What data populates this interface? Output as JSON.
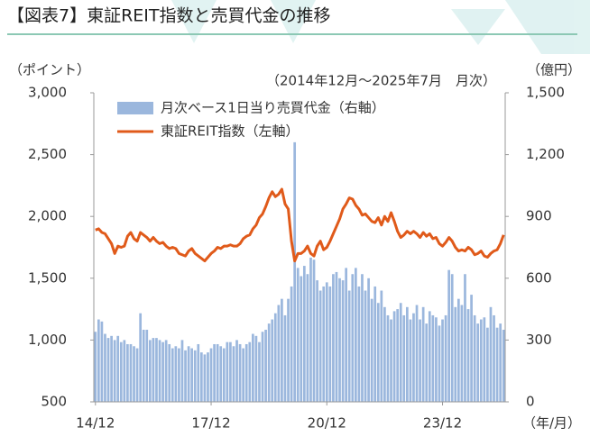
{
  "chart_data": {
    "type": "bar-line",
    "title": "【図表7】東証REIT指数と売買代金の推移",
    "subtitle": "（2014年12月～2025年7月　月次）",
    "y_label": "（ポイント）",
    "y2_label": "（億円）",
    "x_label": "（年/月）",
    "categories": [
      "14/12",
      null,
      null,
      null,
      null,
      null,
      null,
      null,
      null,
      null,
      null,
      null,
      null,
      null,
      null,
      null,
      null,
      null,
      null,
      null,
      null,
      null,
      null,
      null,
      null,
      null,
      null,
      null,
      null,
      null,
      null,
      null,
      null,
      null,
      null,
      null,
      "17/12",
      null,
      null,
      null,
      null,
      null,
      null,
      null,
      null,
      null,
      null,
      null,
      null,
      null,
      null,
      null,
      null,
      null,
      null,
      null,
      null,
      null,
      null,
      null,
      null,
      null,
      null,
      null,
      null,
      null,
      null,
      null,
      null,
      null,
      null,
      null,
      "20/12",
      null,
      null,
      null,
      null,
      null,
      null,
      null,
      null,
      null,
      null,
      null,
      null,
      null,
      null,
      null,
      null,
      null,
      null,
      null,
      null,
      null,
      null,
      null,
      null,
      null,
      null,
      null,
      null,
      null,
      null,
      null,
      null,
      null,
      null,
      null,
      "23/12",
      null,
      null,
      null,
      null,
      null,
      null,
      null,
      null,
      null,
      null,
      null,
      null,
      null,
      null,
      null,
      null,
      null,
      null,
      null
    ],
    "series": [
      {
        "name": "月次ベース1日当り売買代金（右軸）",
        "color": "#9bb7dd",
        "axis": "y2",
        "kind": "bar",
        "values": [
          340,
          400,
          390,
          330,
          310,
          320,
          300,
          320,
          290,
          300,
          280,
          280,
          270,
          260,
          430,
          350,
          350,
          300,
          310,
          310,
          300,
          290,
          300,
          280,
          260,
          270,
          260,
          300,
          250,
          270,
          260,
          250,
          280,
          240,
          230,
          240,
          260,
          280,
          280,
          270,
          260,
          290,
          290,
          270,
          300,
          280,
          260,
          280,
          290,
          330,
          320,
          290,
          340,
          350,
          380,
          400,
          430,
          470,
          500,
          420,
          500,
          560,
          1260,
          650,
          610,
          660,
          620,
          700,
          690,
          590,
          540,
          560,
          580,
          560,
          620,
          630,
          600,
          590,
          650,
          540,
          620,
          650,
          560,
          620,
          540,
          600,
          500,
          560,
          480,
          540,
          460,
          420,
          400,
          440,
          450,
          480,
          420,
          460,
          400,
          430,
          470,
          400,
          460,
          380,
          440,
          420,
          410,
          370,
          400,
          420,
          640,
          620,
          460,
          500,
          470,
          620,
          450,
          520,
          420,
          380,
          400,
          410,
          360,
          460,
          420,
          360,
          380,
          350
        ]
      },
      {
        "name": "東証REIT指数（左軸）",
        "color": "#e05a1a",
        "axis": "y",
        "kind": "line",
        "values": [
          1890,
          1900,
          1870,
          1860,
          1820,
          1780,
          1700,
          1760,
          1750,
          1760,
          1840,
          1870,
          1820,
          1800,
          1870,
          1850,
          1830,
          1800,
          1830,
          1800,
          1780,
          1790,
          1760,
          1740,
          1750,
          1740,
          1700,
          1690,
          1680,
          1720,
          1740,
          1700,
          1680,
          1660,
          1640,
          1670,
          1700,
          1720,
          1750,
          1740,
          1760,
          1760,
          1770,
          1760,
          1760,
          1780,
          1820,
          1840,
          1850,
          1900,
          1930,
          1990,
          2020,
          2080,
          2150,
          2200,
          2160,
          2180,
          2220,
          2100,
          2060,
          1800,
          1640,
          1700,
          1700,
          1720,
          1760,
          1700,
          1680,
          1760,
          1800,
          1730,
          1750,
          1800,
          1860,
          1920,
          1980,
          2060,
          2100,
          2150,
          2140,
          2090,
          2060,
          2010,
          2020,
          1990,
          1960,
          1950,
          1990,
          1930,
          2000,
          1960,
          2030,
          1960,
          1880,
          1830,
          1850,
          1880,
          1860,
          1880,
          1860,
          1830,
          1870,
          1840,
          1860,
          1820,
          1830,
          1780,
          1760,
          1790,
          1830,
          1800,
          1750,
          1720,
          1730,
          1720,
          1750,
          1730,
          1690,
          1700,
          1720,
          1680,
          1670,
          1700,
          1720,
          1730,
          1780,
          1850
        ]
      }
    ],
    "ylim": [
      500,
      3000
    ],
    "yticks": [
      500,
      {
        "value": 1000,
        "label": "1,000"
      },
      {
        "value": 1500,
        "label": "1,500"
      },
      {
        "value": 2000,
        "label": "2,000"
      },
      {
        "value": 2500,
        "label": "2,500"
      },
      {
        "value": 3000,
        "label": "3,000"
      }
    ],
    "y2lim": [
      0,
      1500
    ],
    "y2ticks": [
      0,
      300,
      600,
      900,
      {
        "value": 1200,
        "label": "1,200"
      },
      {
        "value": 1500,
        "label": "1,500"
      }
    ],
    "legend": "top-left"
  }
}
